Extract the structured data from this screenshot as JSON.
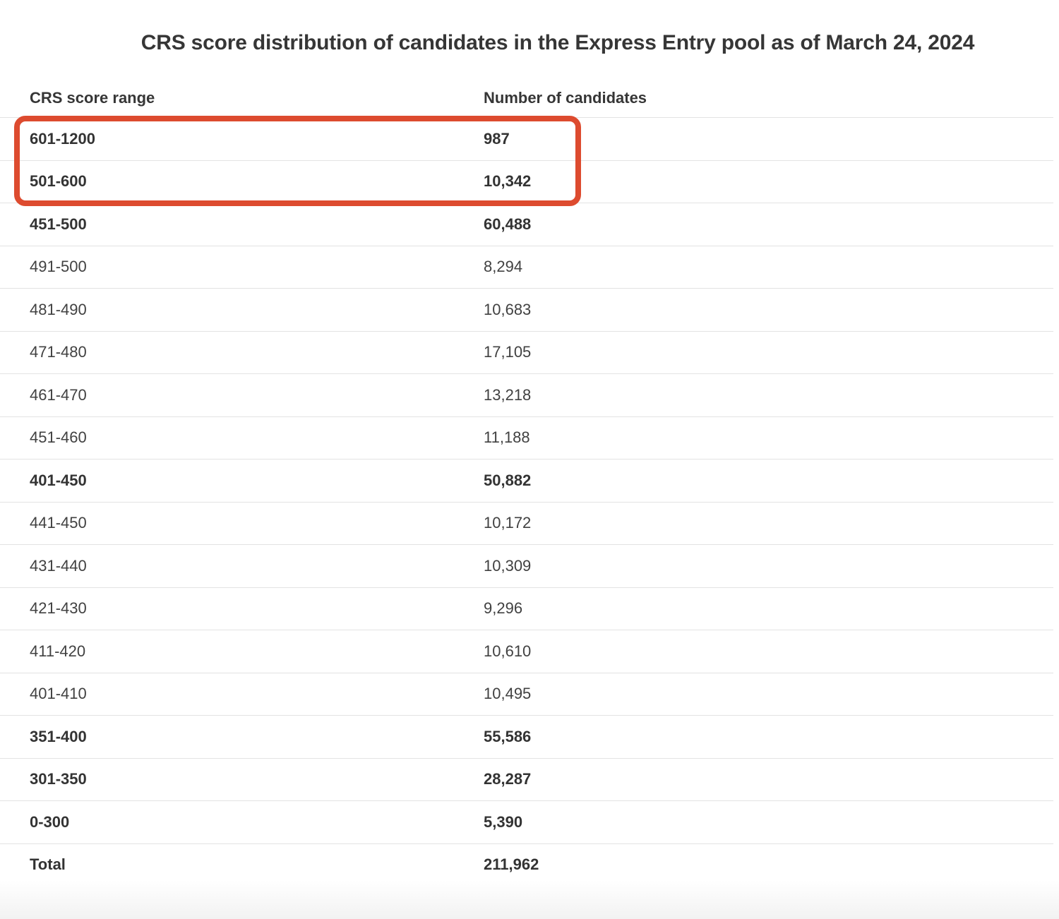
{
  "title": "CRS score distribution of candidates in the Express Entry pool as of March 24, 2024",
  "table": {
    "columns": {
      "range": "CRS score range",
      "count": "Number of candidates"
    },
    "rows": [
      {
        "range": "601-1200",
        "count": "987"
      },
      {
        "range": "501-600",
        "count": "10,342"
      },
      {
        "range": "451-500",
        "count": "60,488"
      },
      {
        "range": "491-500",
        "count": "8,294"
      },
      {
        "range": "481-490",
        "count": "10,683"
      },
      {
        "range": "471-480",
        "count": "17,105"
      },
      {
        "range": "461-470",
        "count": "13,218"
      },
      {
        "range": "451-460",
        "count": "11,188"
      },
      {
        "range": "401-450",
        "count": "50,882"
      },
      {
        "range": "441-450",
        "count": "10,172"
      },
      {
        "range": "431-440",
        "count": "10,309"
      },
      {
        "range": "421-430",
        "count": "9,296"
      },
      {
        "range": "411-420",
        "count": "10,610"
      },
      {
        "range": "401-410",
        "count": "10,495"
      },
      {
        "range": "351-400",
        "count": "55,586"
      },
      {
        "range": "301-350",
        "count": "28,287"
      },
      {
        "range": "0-300",
        "count": "5,390"
      },
      {
        "range": "Total",
        "count": "211,962"
      }
    ]
  },
  "annotation": {
    "highlight_color": "#dd4b2f",
    "highlighted_ranges": [
      "601-1200",
      "501-600"
    ]
  },
  "chart_data": {
    "type": "table",
    "title": "CRS score distribution of candidates in the Express Entry pool as of March 24, 2024",
    "columns": [
      "CRS score range",
      "Number of candidates"
    ],
    "rows": [
      [
        "601-1200",
        987
      ],
      [
        "501-600",
        10342
      ],
      [
        "451-500",
        60488
      ],
      [
        "491-500",
        8294
      ],
      [
        "481-490",
        10683
      ],
      [
        "471-480",
        17105
      ],
      [
        "461-470",
        13218
      ],
      [
        "451-460",
        11188
      ],
      [
        "401-450",
        50882
      ],
      [
        "441-450",
        10172
      ],
      [
        "431-440",
        10309
      ],
      [
        "421-430",
        9296
      ],
      [
        "411-420",
        10610
      ],
      [
        "401-410",
        10495
      ],
      [
        "351-400",
        55586
      ],
      [
        "301-350",
        28287
      ],
      [
        "0-300",
        5390
      ],
      [
        "Total",
        211962
      ]
    ],
    "bold_rows": [
      "601-1200",
      "501-600",
      "451-500",
      "401-450",
      "351-400",
      "301-350",
      "0-300",
      "Total"
    ],
    "annotation": "Rows 601-1200 and 501-600 outlined with a red rounded rectangle"
  }
}
